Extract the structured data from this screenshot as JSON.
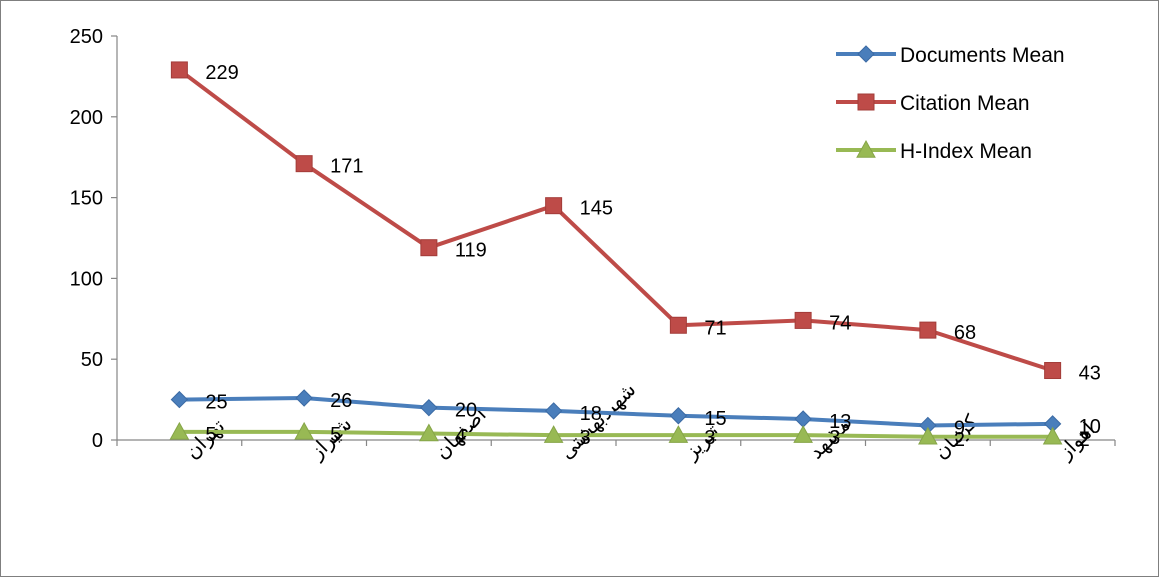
{
  "chart_data": {
    "type": "line",
    "title": "",
    "xlabel": "",
    "ylabel": "",
    "ylim": [
      0,
      250
    ],
    "yticks": [
      "0",
      "50",
      "100",
      "150",
      "200",
      "250"
    ],
    "categories": [
      "تهران",
      "شیراز",
      "اصفهان",
      "شهیدبهشتی",
      "تبریز",
      "مشهد",
      "کرمان",
      "اهواز"
    ],
    "series": [
      {
        "name": "Documents Mean",
        "values": [
          25,
          26,
          20,
          18,
          15,
          13,
          9,
          10
        ],
        "color": "#4a7ebb",
        "marker": "diamond"
      },
      {
        "name": "Citation Mean",
        "values": [
          229,
          171,
          119,
          145,
          71,
          74,
          68,
          43
        ],
        "color": "#be4b48",
        "marker": "square"
      },
      {
        "name": "H-Index Mean",
        "values": [
          5,
          5,
          4,
          3,
          3,
          3,
          2,
          2
        ],
        "color": "#98b954",
        "marker": "triangle"
      }
    ],
    "legend_position": "top-right",
    "grid": false
  }
}
